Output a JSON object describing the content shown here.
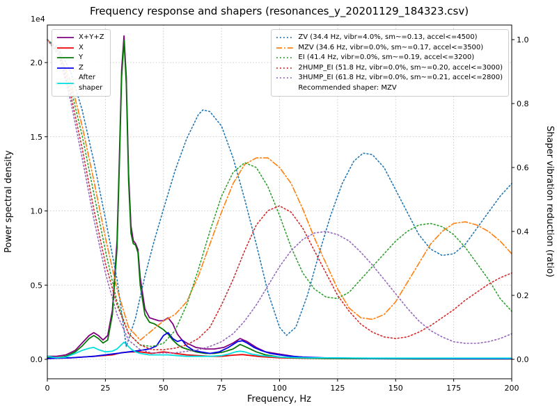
{
  "chart_data": {
    "type": "line",
    "title": "Frequency response and shapers (resonances_y_20201129_184323.csv)",
    "xlabel": "Frequency, Hz",
    "ylabel_left": "Power spectral density",
    "ylabel_right": "Shaper vibration reduction (ratio)",
    "y_left_offset_text": "1e4",
    "grid": true,
    "x_range": [
      0,
      200
    ],
    "y_left_range_1e4": [
      -0.13,
      2.25
    ],
    "y_right_range": [
      -0.06,
      1.05
    ],
    "x_ticks": [
      "0",
      "25",
      "50",
      "75",
      "100",
      "125",
      "150",
      "175",
      "200"
    ],
    "y_left_ticks": [
      "0.0",
      "0.5",
      "1.0",
      "1.5",
      "2.0"
    ],
    "y_right_ticks": [
      "0.0",
      "0.2",
      "0.4",
      "0.6",
      "0.8",
      "1.0"
    ],
    "legend_note": "Recommended shaper: MZV",
    "recommended_shaper": "MZV",
    "psd_series": [
      {
        "key": "xyz",
        "label": "X+Y+Z",
        "color": "#800080",
        "style": "solid",
        "axis": "left",
        "x": [
          0,
          4,
          8,
          12,
          15,
          18,
          20,
          22,
          24,
          26,
          28,
          30,
          31,
          32,
          33,
          34,
          35,
          36,
          37,
          38,
          39,
          40,
          42,
          44,
          46,
          48,
          50,
          52,
          54,
          56,
          58,
          60,
          64,
          68,
          72,
          76,
          80,
          83,
          86,
          90,
          94,
          100,
          106,
          112,
          120,
          140,
          160,
          180,
          200
        ],
        "y": [
          0.02,
          0.02,
          0.03,
          0.06,
          0.11,
          0.16,
          0.18,
          0.16,
          0.13,
          0.16,
          0.33,
          0.8,
          1.35,
          1.95,
          2.18,
          1.9,
          1.25,
          0.9,
          0.8,
          0.78,
          0.74,
          0.55,
          0.34,
          0.28,
          0.27,
          0.26,
          0.26,
          0.28,
          0.24,
          0.17,
          0.13,
          0.11,
          0.08,
          0.07,
          0.07,
          0.08,
          0.11,
          0.14,
          0.12,
          0.08,
          0.05,
          0.035,
          0.02,
          0.012,
          0.009,
          0.006,
          0.005,
          0.004,
          0.004
        ]
      },
      {
        "key": "x",
        "label": "X",
        "color": "#ee0000",
        "style": "solid",
        "axis": "left",
        "x": [
          0,
          10,
          20,
          28,
          32,
          36,
          40,
          45,
          50,
          55,
          60,
          65,
          70,
          75,
          80,
          84,
          88,
          92,
          100,
          110,
          120,
          140,
          160,
          180,
          200
        ],
        "y": [
          0.005,
          0.01,
          0.02,
          0.03,
          0.045,
          0.05,
          0.05,
          0.04,
          0.05,
          0.04,
          0.03,
          0.025,
          0.02,
          0.02,
          0.028,
          0.032,
          0.025,
          0.018,
          0.01,
          0.007,
          0.005,
          0.004,
          0.003,
          0.003,
          0.003
        ]
      },
      {
        "key": "y",
        "label": "Y",
        "color": "#067806",
        "style": "solid",
        "axis": "left",
        "x": [
          0,
          4,
          8,
          12,
          15,
          18,
          20,
          22,
          24,
          26,
          28,
          30,
          31,
          32,
          33,
          34,
          35,
          36,
          37,
          38,
          39,
          40,
          42,
          44,
          46,
          48,
          50,
          52,
          54,
          56,
          58,
          60,
          64,
          68,
          72,
          76,
          80,
          83,
          86,
          90,
          94,
          100,
          106,
          112,
          120,
          140,
          160,
          180,
          200
        ],
        "y": [
          0.01,
          0.01,
          0.02,
          0.05,
          0.09,
          0.14,
          0.16,
          0.14,
          0.11,
          0.13,
          0.3,
          0.75,
          1.3,
          1.9,
          2.15,
          1.85,
          1.2,
          0.85,
          0.78,
          0.77,
          0.72,
          0.5,
          0.3,
          0.25,
          0.24,
          0.22,
          0.2,
          0.17,
          0.13,
          0.1,
          0.08,
          0.07,
          0.05,
          0.04,
          0.04,
          0.05,
          0.07,
          0.1,
          0.08,
          0.05,
          0.03,
          0.015,
          0.01,
          0.008,
          0.006,
          0.004,
          0.003,
          0.003,
          0.003
        ]
      },
      {
        "key": "z",
        "label": "Z",
        "color": "#0000ee",
        "style": "solid",
        "axis": "left",
        "x": [
          0,
          10,
          20,
          30,
          35,
          40,
          44,
          47,
          50,
          52,
          54,
          56,
          58,
          60,
          63,
          66,
          70,
          74,
          78,
          80,
          82,
          84,
          86,
          89,
          92,
          96,
          100,
          105,
          110,
          120,
          140,
          160,
          180,
          200
        ],
        "y": [
          0.005,
          0.01,
          0.02,
          0.04,
          0.05,
          0.06,
          0.07,
          0.09,
          0.16,
          0.18,
          0.14,
          0.12,
          0.13,
          0.09,
          0.06,
          0.05,
          0.04,
          0.05,
          0.08,
          0.1,
          0.12,
          0.125,
          0.11,
          0.08,
          0.06,
          0.04,
          0.03,
          0.02,
          0.015,
          0.01,
          0.006,
          0.005,
          0.004,
          0.004
        ]
      },
      {
        "key": "after-shaper",
        "label": "After\nshaper",
        "color": "#00dede",
        "style": "solid",
        "axis": "left",
        "x": [
          0,
          4,
          8,
          12,
          15,
          18,
          20,
          22,
          25,
          28,
          30,
          32,
          33,
          34,
          36,
          38,
          40,
          44,
          48,
          52,
          56,
          60,
          65,
          70,
          75,
          78,
          81,
          83,
          85,
          88,
          92,
          96,
          100,
          106,
          112,
          120,
          140,
          160,
          180,
          200
        ],
        "y": [
          0.02,
          0.01,
          0.015,
          0.04,
          0.06,
          0.075,
          0.08,
          0.065,
          0.05,
          0.055,
          0.07,
          0.1,
          0.115,
          0.1,
          0.07,
          0.05,
          0.04,
          0.03,
          0.03,
          0.03,
          0.025,
          0.02,
          0.02,
          0.02,
          0.025,
          0.035,
          0.05,
          0.055,
          0.05,
          0.035,
          0.025,
          0.02,
          0.015,
          0.012,
          0.01,
          0.01,
          0.008,
          0.008,
          0.008,
          0.008
        ]
      }
    ],
    "shaper_series": [
      {
        "key": "zv",
        "name": "ZV",
        "legend": "ZV (34.4 Hz, vibr=4.0%, sm~=0.13, accel<=4500)",
        "color": "#1f77b4",
        "style": "dotted",
        "axis": "right",
        "x": [
          0,
          5,
          10,
          15,
          20,
          25,
          30,
          34,
          38,
          42,
          46,
          50,
          55,
          60,
          65,
          67,
          70,
          75,
          80,
          85,
          90,
          95,
          100,
          103,
          107,
          112,
          117,
          122,
          127,
          132,
          136,
          140,
          145,
          150,
          155,
          160,
          165,
          170,
          175,
          180,
          185,
          190,
          195,
          200
        ],
        "y": [
          1.0,
          0.97,
          0.9,
          0.78,
          0.62,
          0.44,
          0.25,
          0.04,
          0.13,
          0.26,
          0.37,
          0.47,
          0.59,
          0.69,
          0.765,
          0.78,
          0.775,
          0.73,
          0.63,
          0.5,
          0.36,
          0.21,
          0.1,
          0.075,
          0.1,
          0.2,
          0.33,
          0.45,
          0.55,
          0.62,
          0.645,
          0.64,
          0.6,
          0.53,
          0.46,
          0.39,
          0.345,
          0.325,
          0.33,
          0.36,
          0.41,
          0.46,
          0.51,
          0.55
        ]
      },
      {
        "key": "mzv",
        "name": "MZV",
        "legend": "MZV (34.6 Hz, vibr=0.0%, sm~=0.17, accel<=3500)",
        "color": "#ff7f0e",
        "style": "dashdot",
        "axis": "right",
        "x": [
          0,
          5,
          10,
          15,
          20,
          25,
          30,
          35,
          40,
          45,
          50,
          55,
          60,
          65,
          70,
          75,
          80,
          85,
          90,
          95,
          100,
          105,
          110,
          115,
          120,
          125,
          130,
          135,
          140,
          145,
          150,
          155,
          160,
          165,
          170,
          175,
          180,
          185,
          190,
          195,
          200
        ],
        "y": [
          1.0,
          0.96,
          0.87,
          0.73,
          0.56,
          0.38,
          0.22,
          0.1,
          0.06,
          0.09,
          0.12,
          0.14,
          0.18,
          0.26,
          0.36,
          0.46,
          0.55,
          0.61,
          0.63,
          0.63,
          0.6,
          0.55,
          0.47,
          0.38,
          0.3,
          0.22,
          0.16,
          0.13,
          0.125,
          0.14,
          0.18,
          0.24,
          0.3,
          0.36,
          0.4,
          0.425,
          0.43,
          0.42,
          0.4,
          0.37,
          0.33
        ]
      },
      {
        "key": "ei",
        "name": "EI",
        "legend": "EI (41.4 Hz, vibr=0.0%, sm~=0.19, accel<=3200)",
        "color": "#2ca02c",
        "style": "dotted",
        "axis": "right",
        "x": [
          0,
          5,
          10,
          15,
          20,
          25,
          30,
          35,
          40,
          45,
          50,
          55,
          60,
          65,
          70,
          75,
          80,
          85,
          90,
          95,
          100,
          105,
          110,
          115,
          120,
          125,
          130,
          135,
          140,
          145,
          150,
          155,
          160,
          165,
          170,
          175,
          180,
          185,
          190,
          195,
          200
        ],
        "y": [
          1.0,
          0.96,
          0.85,
          0.7,
          0.52,
          0.34,
          0.18,
          0.08,
          0.045,
          0.04,
          0.05,
          0.09,
          0.17,
          0.28,
          0.4,
          0.51,
          0.585,
          0.615,
          0.6,
          0.54,
          0.45,
          0.35,
          0.27,
          0.22,
          0.195,
          0.19,
          0.21,
          0.25,
          0.29,
          0.33,
          0.37,
          0.4,
          0.42,
          0.425,
          0.415,
          0.39,
          0.35,
          0.3,
          0.25,
          0.19,
          0.15
        ]
      },
      {
        "key": "2hump-ei",
        "name": "2HUMP_EI",
        "legend": "2HUMP_EI (51.8 Hz, vibr=0.0%, sm~=0.20, accel<=3000)",
        "color": "#d62728",
        "style": "dotted",
        "axis": "right",
        "x": [
          0,
          5,
          10,
          15,
          20,
          25,
          30,
          35,
          40,
          45,
          50,
          55,
          60,
          65,
          70,
          75,
          80,
          85,
          90,
          95,
          100,
          105,
          110,
          115,
          120,
          125,
          130,
          135,
          140,
          145,
          150,
          155,
          160,
          165,
          170,
          175,
          180,
          185,
          190,
          195,
          200
        ],
        "y": [
          1.0,
          0.95,
          0.83,
          0.66,
          0.47,
          0.3,
          0.17,
          0.08,
          0.045,
          0.03,
          0.03,
          0.035,
          0.045,
          0.065,
          0.1,
          0.17,
          0.25,
          0.34,
          0.42,
          0.465,
          0.48,
          0.46,
          0.41,
          0.34,
          0.27,
          0.2,
          0.15,
          0.11,
          0.085,
          0.07,
          0.065,
          0.07,
          0.085,
          0.105,
          0.13,
          0.155,
          0.185,
          0.21,
          0.235,
          0.255,
          0.27
        ]
      },
      {
        "key": "3hump-ei",
        "name": "3HUMP_EI",
        "legend": "3HUMP_EI (61.8 Hz, vibr=0.0%, sm~=0.21, accel<=2800)",
        "color": "#9467bd",
        "style": "dotted",
        "axis": "right",
        "x": [
          0,
          5,
          10,
          15,
          20,
          25,
          30,
          35,
          40,
          45,
          50,
          55,
          60,
          65,
          70,
          75,
          80,
          85,
          90,
          95,
          100,
          105,
          110,
          115,
          120,
          125,
          130,
          135,
          140,
          145,
          150,
          155,
          160,
          165,
          170,
          175,
          180,
          185,
          190,
          195,
          200
        ],
        "y": [
          1.0,
          0.95,
          0.81,
          0.63,
          0.44,
          0.27,
          0.14,
          0.06,
          0.03,
          0.02,
          0.02,
          0.02,
          0.025,
          0.03,
          0.04,
          0.055,
          0.08,
          0.12,
          0.17,
          0.23,
          0.29,
          0.34,
          0.375,
          0.395,
          0.4,
          0.39,
          0.37,
          0.335,
          0.295,
          0.25,
          0.205,
          0.16,
          0.12,
          0.09,
          0.07,
          0.055,
          0.05,
          0.05,
          0.055,
          0.065,
          0.08
        ]
      }
    ]
  }
}
